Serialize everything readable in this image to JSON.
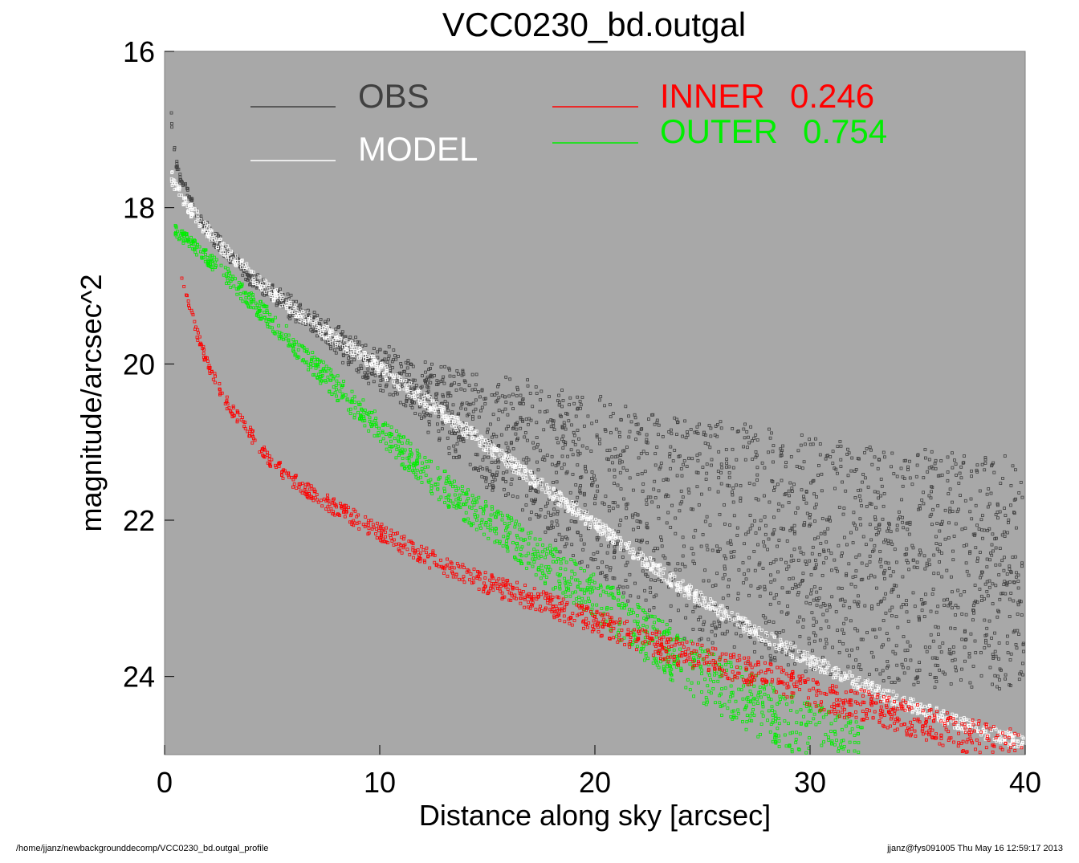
{
  "chart_data": {
    "type": "scatter",
    "title": "VCC0230_bd.outgal",
    "xlabel": "Distance along sky [arcsec]",
    "ylabel": "magnitude/arcsec^2",
    "xlim": [
      0,
      40
    ],
    "ylim": [
      25.0,
      16
    ],
    "y_inverted": true,
    "xticks": [
      0,
      10,
      20,
      30,
      40
    ],
    "yticks": [
      16,
      18,
      20,
      22,
      24
    ],
    "grid": false,
    "legend_placement": "top",
    "plot_background": "#a8a8a8",
    "series": [
      {
        "name": "OBS",
        "color": "#404040",
        "marker": "open-square",
        "x": [
          0.3,
          0.5,
          0.8,
          1,
          1.5,
          2,
          3,
          4,
          5,
          6,
          7,
          8,
          9,
          10,
          11,
          12,
          13,
          14,
          15,
          16,
          17,
          18,
          19,
          20,
          21,
          22,
          23,
          24,
          25,
          26,
          27,
          28,
          29,
          30,
          31,
          32,
          33,
          34,
          35,
          36,
          37,
          38,
          39,
          40
        ],
        "values": [
          16.8,
          17.4,
          17.7,
          17.75,
          18.1,
          18.3,
          18.6,
          18.9,
          19.1,
          19.3,
          19.5,
          19.7,
          19.9,
          20.05,
          20.2,
          20.35,
          20.55,
          20.7,
          20.85,
          21.0,
          21.15,
          21.3,
          21.45,
          21.55,
          21.7,
          21.85,
          21.95,
          22.05,
          22.15,
          22.2,
          22.3,
          22.35,
          22.4,
          22.45,
          22.5,
          22.55,
          22.55,
          22.6,
          22.6,
          22.65,
          22.65,
          22.7,
          22.7,
          22.75
        ],
        "scatter_mag": [
          0,
          0,
          0,
          0,
          0,
          0.05,
          0.05,
          0.05,
          0.1,
          0.1,
          0.1,
          0.15,
          0.2,
          0.25,
          0.3,
          0.4,
          0.5,
          0.6,
          0.7,
          0.8,
          0.9,
          1.0,
          1.1,
          1.2,
          1.2,
          1.3,
          1.3,
          1.4,
          1.4,
          1.4,
          1.5,
          1.5,
          1.5,
          1.5,
          1.5,
          1.5,
          1.5,
          1.5,
          1.5,
          1.5,
          1.5,
          1.5,
          1.5,
          1.5
        ]
      },
      {
        "name": "MODEL",
        "color": "#ffffff",
        "marker": "open-square",
        "x": [
          0.3,
          1,
          2,
          3,
          4,
          5,
          6,
          7,
          8,
          9,
          10,
          12,
          14,
          16,
          18,
          20,
          22,
          24,
          26,
          28,
          30,
          32,
          34,
          36,
          38,
          40
        ],
        "values": [
          17.6,
          17.95,
          18.3,
          18.6,
          18.85,
          19.1,
          19.3,
          19.5,
          19.7,
          19.85,
          20.05,
          20.45,
          20.85,
          21.25,
          21.65,
          22.05,
          22.45,
          22.85,
          23.2,
          23.5,
          23.8,
          24.05,
          24.3,
          24.5,
          24.7,
          24.85
        ]
      },
      {
        "name": "INNER",
        "color": "#ff0000",
        "marker": "open-square",
        "x": [
          0.6,
          1,
          1.5,
          2,
          3,
          4,
          5,
          6,
          8,
          10,
          12,
          14,
          16,
          18,
          20,
          22,
          24,
          26,
          28,
          30,
          32,
          34,
          36,
          38,
          40
        ],
        "values": [
          18.65,
          19.1,
          19.6,
          20.0,
          20.55,
          20.9,
          21.25,
          21.5,
          21.85,
          22.15,
          22.45,
          22.7,
          22.9,
          23.1,
          23.3,
          23.5,
          23.7,
          23.85,
          24.0,
          24.2,
          24.35,
          24.5,
          24.65,
          24.8,
          24.95
        ],
        "band_width": 0.35
      },
      {
        "name": "OUTER",
        "color": "#00ee00",
        "marker": "open-square",
        "x": [
          0.5,
          1,
          2,
          3,
          4,
          5,
          6,
          8,
          10,
          12,
          14,
          16,
          18,
          20,
          22,
          24,
          26,
          28,
          30,
          32
        ],
        "values": [
          18.3,
          18.4,
          18.65,
          18.9,
          19.2,
          19.45,
          19.75,
          20.3,
          20.85,
          21.35,
          21.8,
          22.2,
          22.6,
          23.0,
          23.4,
          23.8,
          24.15,
          24.45,
          24.75,
          25.0
        ],
        "band_width": 0.7
      }
    ],
    "legend": [
      {
        "label": "OBS",
        "value": "",
        "color": "#404040"
      },
      {
        "label": "MODEL",
        "value": "",
        "color": "#ffffff"
      },
      {
        "label": "INNER",
        "value": "0.246",
        "color": "#ff0000"
      },
      {
        "label": "OUTER",
        "value": "0.754",
        "color": "#00ee00"
      }
    ]
  },
  "footer": {
    "left": "/home/jjanz/newbackgrounddecomp/VCC0230_bd.outgal_profile",
    "right": "jjanz@fys091005  Thu May 16 12:59:17 2013"
  }
}
